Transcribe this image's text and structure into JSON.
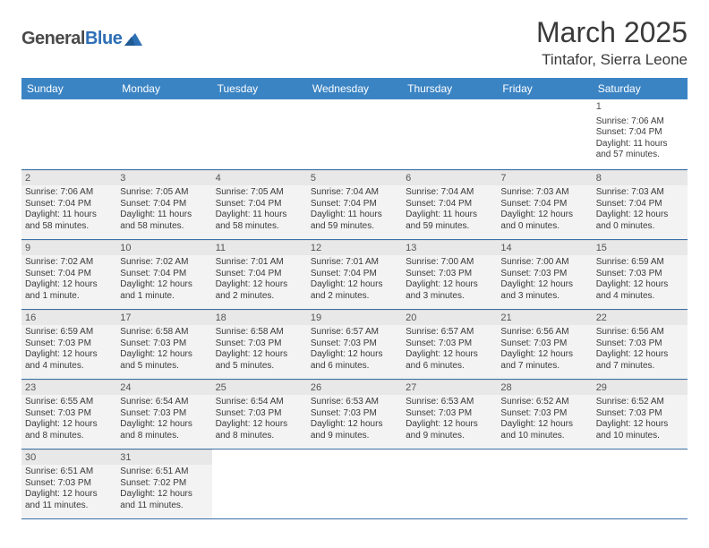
{
  "brand": {
    "part1": "General",
    "part2": "Blue"
  },
  "title": {
    "month": "March 2025",
    "location": "Tintafor, Sierra Leone"
  },
  "colors": {
    "header_bg": "#3b84c4",
    "header_text": "#ffffff",
    "rule": "#3b6fa5",
    "cell_bg": "#f3f3f3",
    "daybar_bg": "#e8e8e8",
    "text": "#3a3a3a",
    "brand_grey": "#4a4a4a",
    "brand_blue": "#2d6fb5"
  },
  "typography": {
    "title_fontsize": 32,
    "location_fontsize": 17,
    "header_fontsize": 12,
    "cell_fontsize": 10,
    "daynum_fontsize": 11
  },
  "day_headers": [
    "Sunday",
    "Monday",
    "Tuesday",
    "Wednesday",
    "Thursday",
    "Friday",
    "Saturday"
  ],
  "weeks": [
    [
      null,
      null,
      null,
      null,
      null,
      null,
      {
        "n": "1",
        "sr": "Sunrise: 7:06 AM",
        "ss": "Sunset: 7:04 PM",
        "dl": "Daylight: 11 hours and 57 minutes."
      }
    ],
    [
      {
        "n": "2",
        "sr": "Sunrise: 7:06 AM",
        "ss": "Sunset: 7:04 PM",
        "dl": "Daylight: 11 hours and 58 minutes."
      },
      {
        "n": "3",
        "sr": "Sunrise: 7:05 AM",
        "ss": "Sunset: 7:04 PM",
        "dl": "Daylight: 11 hours and 58 minutes."
      },
      {
        "n": "4",
        "sr": "Sunrise: 7:05 AM",
        "ss": "Sunset: 7:04 PM",
        "dl": "Daylight: 11 hours and 58 minutes."
      },
      {
        "n": "5",
        "sr": "Sunrise: 7:04 AM",
        "ss": "Sunset: 7:04 PM",
        "dl": "Daylight: 11 hours and 59 minutes."
      },
      {
        "n": "6",
        "sr": "Sunrise: 7:04 AM",
        "ss": "Sunset: 7:04 PM",
        "dl": "Daylight: 11 hours and 59 minutes."
      },
      {
        "n": "7",
        "sr": "Sunrise: 7:03 AM",
        "ss": "Sunset: 7:04 PM",
        "dl": "Daylight: 12 hours and 0 minutes."
      },
      {
        "n": "8",
        "sr": "Sunrise: 7:03 AM",
        "ss": "Sunset: 7:04 PM",
        "dl": "Daylight: 12 hours and 0 minutes."
      }
    ],
    [
      {
        "n": "9",
        "sr": "Sunrise: 7:02 AM",
        "ss": "Sunset: 7:04 PM",
        "dl": "Daylight: 12 hours and 1 minute."
      },
      {
        "n": "10",
        "sr": "Sunrise: 7:02 AM",
        "ss": "Sunset: 7:04 PM",
        "dl": "Daylight: 12 hours and 1 minute."
      },
      {
        "n": "11",
        "sr": "Sunrise: 7:01 AM",
        "ss": "Sunset: 7:04 PM",
        "dl": "Daylight: 12 hours and 2 minutes."
      },
      {
        "n": "12",
        "sr": "Sunrise: 7:01 AM",
        "ss": "Sunset: 7:04 PM",
        "dl": "Daylight: 12 hours and 2 minutes."
      },
      {
        "n": "13",
        "sr": "Sunrise: 7:00 AM",
        "ss": "Sunset: 7:03 PM",
        "dl": "Daylight: 12 hours and 3 minutes."
      },
      {
        "n": "14",
        "sr": "Sunrise: 7:00 AM",
        "ss": "Sunset: 7:03 PM",
        "dl": "Daylight: 12 hours and 3 minutes."
      },
      {
        "n": "15",
        "sr": "Sunrise: 6:59 AM",
        "ss": "Sunset: 7:03 PM",
        "dl": "Daylight: 12 hours and 4 minutes."
      }
    ],
    [
      {
        "n": "16",
        "sr": "Sunrise: 6:59 AM",
        "ss": "Sunset: 7:03 PM",
        "dl": "Daylight: 12 hours and 4 minutes."
      },
      {
        "n": "17",
        "sr": "Sunrise: 6:58 AM",
        "ss": "Sunset: 7:03 PM",
        "dl": "Daylight: 12 hours and 5 minutes."
      },
      {
        "n": "18",
        "sr": "Sunrise: 6:58 AM",
        "ss": "Sunset: 7:03 PM",
        "dl": "Daylight: 12 hours and 5 minutes."
      },
      {
        "n": "19",
        "sr": "Sunrise: 6:57 AM",
        "ss": "Sunset: 7:03 PM",
        "dl": "Daylight: 12 hours and 6 minutes."
      },
      {
        "n": "20",
        "sr": "Sunrise: 6:57 AM",
        "ss": "Sunset: 7:03 PM",
        "dl": "Daylight: 12 hours and 6 minutes."
      },
      {
        "n": "21",
        "sr": "Sunrise: 6:56 AM",
        "ss": "Sunset: 7:03 PM",
        "dl": "Daylight: 12 hours and 7 minutes."
      },
      {
        "n": "22",
        "sr": "Sunrise: 6:56 AM",
        "ss": "Sunset: 7:03 PM",
        "dl": "Daylight: 12 hours and 7 minutes."
      }
    ],
    [
      {
        "n": "23",
        "sr": "Sunrise: 6:55 AM",
        "ss": "Sunset: 7:03 PM",
        "dl": "Daylight: 12 hours and 8 minutes."
      },
      {
        "n": "24",
        "sr": "Sunrise: 6:54 AM",
        "ss": "Sunset: 7:03 PM",
        "dl": "Daylight: 12 hours and 8 minutes."
      },
      {
        "n": "25",
        "sr": "Sunrise: 6:54 AM",
        "ss": "Sunset: 7:03 PM",
        "dl": "Daylight: 12 hours and 8 minutes."
      },
      {
        "n": "26",
        "sr": "Sunrise: 6:53 AM",
        "ss": "Sunset: 7:03 PM",
        "dl": "Daylight: 12 hours and 9 minutes."
      },
      {
        "n": "27",
        "sr": "Sunrise: 6:53 AM",
        "ss": "Sunset: 7:03 PM",
        "dl": "Daylight: 12 hours and 9 minutes."
      },
      {
        "n": "28",
        "sr": "Sunrise: 6:52 AM",
        "ss": "Sunset: 7:03 PM",
        "dl": "Daylight: 12 hours and 10 minutes."
      },
      {
        "n": "29",
        "sr": "Sunrise: 6:52 AM",
        "ss": "Sunset: 7:03 PM",
        "dl": "Daylight: 12 hours and 10 minutes."
      }
    ],
    [
      {
        "n": "30",
        "sr": "Sunrise: 6:51 AM",
        "ss": "Sunset: 7:03 PM",
        "dl": "Daylight: 12 hours and 11 minutes."
      },
      {
        "n": "31",
        "sr": "Sunrise: 6:51 AM",
        "ss": "Sunset: 7:02 PM",
        "dl": "Daylight: 12 hours and 11 minutes."
      },
      null,
      null,
      null,
      null,
      null
    ]
  ]
}
